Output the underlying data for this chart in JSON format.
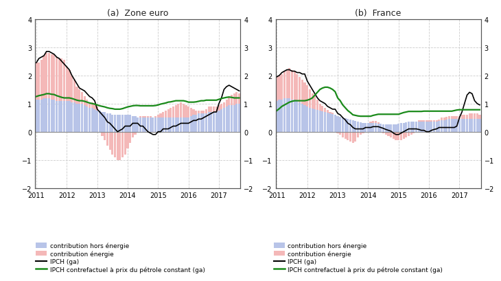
{
  "title_left": "(a)  Zone euro",
  "title_right": "(b)  France",
  "ylim": [
    -2,
    4
  ],
  "yticks": [
    -2,
    -1,
    0,
    1,
    2,
    3,
    4
  ],
  "bg_color": "#ffffff",
  "plot_bg_color": "#ffffff",
  "bar_color_energy": "#f4b8b8",
  "bar_color_non_energy": "#b8c4e8",
  "line_color_ipch": "#000000",
  "line_color_counterfactual": "#1a8a1a",
  "grid_color": "#cccccc",
  "spine_color": "#555555",
  "x_labels": [
    "2011",
    "2012",
    "2013",
    "2014",
    "2015",
    "2016",
    "2017"
  ],
  "xtick_pos": [
    0,
    12,
    24,
    36,
    48,
    60,
    72
  ],
  "zone_euro_energy": [
    1.3,
    1.3,
    1.4,
    1.5,
    1.6,
    1.6,
    1.6,
    1.6,
    1.55,
    1.5,
    1.5,
    1.45,
    1.2,
    1.1,
    0.95,
    0.8,
    0.6,
    0.5,
    0.4,
    0.3,
    0.25,
    0.2,
    0.2,
    0.2,
    0.15,
    0.0,
    -0.15,
    -0.3,
    -0.5,
    -0.65,
    -0.8,
    -0.9,
    -1.0,
    -1.0,
    -0.9,
    -0.8,
    -0.6,
    -0.4,
    -0.2,
    -0.1,
    0.0,
    0.05,
    0.05,
    0.05,
    0.05,
    0.05,
    0.0,
    0.05,
    0.1,
    0.15,
    0.2,
    0.25,
    0.3,
    0.35,
    0.4,
    0.45,
    0.5,
    0.55,
    0.5,
    0.45,
    0.4,
    0.3,
    0.2,
    0.15,
    0.1,
    0.1,
    0.1,
    0.15,
    0.2,
    0.2,
    0.2,
    0.2,
    0.2,
    0.2,
    0.2,
    0.25,
    0.3,
    0.35,
    0.4,
    0.4,
    0.35
  ],
  "zone_euro_non_energy": [
    1.15,
    1.15,
    1.15,
    1.2,
    1.2,
    1.2,
    1.15,
    1.15,
    1.1,
    1.1,
    1.1,
    1.1,
    1.1,
    1.1,
    1.05,
    1.05,
    1.0,
    1.0,
    1.0,
    0.95,
    0.9,
    0.85,
    0.85,
    0.8,
    0.75,
    0.75,
    0.7,
    0.7,
    0.65,
    0.65,
    0.6,
    0.6,
    0.6,
    0.6,
    0.6,
    0.6,
    0.6,
    0.6,
    0.55,
    0.55,
    0.5,
    0.5,
    0.5,
    0.5,
    0.5,
    0.5,
    0.5,
    0.5,
    0.5,
    0.5,
    0.5,
    0.5,
    0.5,
    0.5,
    0.5,
    0.5,
    0.5,
    0.5,
    0.5,
    0.5,
    0.5,
    0.55,
    0.6,
    0.6,
    0.65,
    0.65,
    0.65,
    0.65,
    0.7,
    0.7,
    0.7,
    0.7,
    0.75,
    0.8,
    0.85,
    0.9,
    0.95,
    0.95,
    0.95,
    1.0,
    1.0
  ],
  "zone_euro_ipch": [
    2.45,
    2.6,
    2.65,
    2.7,
    2.85,
    2.85,
    2.8,
    2.75,
    2.65,
    2.6,
    2.5,
    2.4,
    2.3,
    2.2,
    2.0,
    1.85,
    1.7,
    1.55,
    1.5,
    1.45,
    1.35,
    1.25,
    1.2,
    1.1,
    0.8,
    0.7,
    0.6,
    0.5,
    0.35,
    0.3,
    0.2,
    0.1,
    0.0,
    0.05,
    0.1,
    0.2,
    0.2,
    0.2,
    0.3,
    0.3,
    0.3,
    0.2,
    0.2,
    0.1,
    0.0,
    -0.05,
    -0.1,
    -0.1,
    0.0,
    0.0,
    0.1,
    0.1,
    0.1,
    0.15,
    0.2,
    0.2,
    0.25,
    0.3,
    0.3,
    0.3,
    0.3,
    0.35,
    0.4,
    0.4,
    0.45,
    0.45,
    0.5,
    0.55,
    0.6,
    0.65,
    0.7,
    0.7,
    1.0,
    1.2,
    1.5,
    1.6,
    1.65,
    1.6,
    1.55,
    1.5,
    1.45
  ],
  "zone_euro_counterfactual": [
    1.25,
    1.28,
    1.3,
    1.32,
    1.35,
    1.35,
    1.33,
    1.32,
    1.28,
    1.25,
    1.22,
    1.2,
    1.2,
    1.2,
    1.18,
    1.15,
    1.12,
    1.1,
    1.1,
    1.08,
    1.05,
    1.02,
    1.0,
    0.98,
    0.95,
    0.92,
    0.9,
    0.88,
    0.85,
    0.83,
    0.82,
    0.8,
    0.8,
    0.8,
    0.82,
    0.85,
    0.88,
    0.9,
    0.92,
    0.93,
    0.93,
    0.92,
    0.92,
    0.92,
    0.92,
    0.92,
    0.92,
    0.93,
    0.95,
    0.98,
    1.0,
    1.02,
    1.05,
    1.06,
    1.08,
    1.1,
    1.1,
    1.1,
    1.1,
    1.08,
    1.05,
    1.05,
    1.05,
    1.06,
    1.08,
    1.1,
    1.1,
    1.12,
    1.12,
    1.12,
    1.12,
    1.12,
    1.15,
    1.18,
    1.2,
    1.22,
    1.23,
    1.22,
    1.2,
    1.2,
    1.2
  ],
  "france_energy": [
    0.85,
    0.85,
    0.9,
    0.95,
    1.0,
    1.05,
    1.05,
    1.0,
    0.95,
    0.9,
    0.85,
    0.8,
    0.75,
    0.65,
    0.55,
    0.45,
    0.35,
    0.25,
    0.2,
    0.15,
    0.1,
    0.05,
    0.05,
    0.0,
    -0.05,
    -0.1,
    -0.2,
    -0.25,
    -0.3,
    -0.35,
    -0.4,
    -0.35,
    -0.2,
    -0.1,
    -0.05,
    0.0,
    0.0,
    0.05,
    0.08,
    0.08,
    0.05,
    0.0,
    -0.05,
    -0.1,
    -0.15,
    -0.2,
    -0.25,
    -0.3,
    -0.3,
    -0.3,
    -0.25,
    -0.2,
    -0.15,
    -0.1,
    -0.05,
    0.0,
    0.05,
    0.05,
    0.05,
    0.05,
    0.05,
    0.05,
    0.05,
    0.05,
    0.05,
    0.1,
    0.1,
    0.1,
    0.1,
    0.1,
    0.1,
    0.1,
    0.1,
    0.15,
    0.15,
    0.15,
    0.2,
    0.2,
    0.2,
    0.2,
    0.15
  ],
  "france_non_energy": [
    1.1,
    1.15,
    1.15,
    1.2,
    1.2,
    1.2,
    1.15,
    1.15,
    1.1,
    1.05,
    1.0,
    0.95,
    0.9,
    0.85,
    0.82,
    0.8,
    0.78,
    0.75,
    0.72,
    0.7,
    0.68,
    0.65,
    0.62,
    0.6,
    0.55,
    0.52,
    0.5,
    0.48,
    0.45,
    0.43,
    0.4,
    0.38,
    0.35,
    0.33,
    0.32,
    0.3,
    0.3,
    0.3,
    0.3,
    0.3,
    0.28,
    0.28,
    0.27,
    0.27,
    0.27,
    0.27,
    0.27,
    0.27,
    0.28,
    0.3,
    0.32,
    0.33,
    0.35,
    0.35,
    0.35,
    0.35,
    0.35,
    0.35,
    0.35,
    0.35,
    0.35,
    0.35,
    0.35,
    0.35,
    0.38,
    0.4,
    0.4,
    0.42,
    0.45,
    0.45,
    0.45,
    0.45,
    0.45,
    0.45,
    0.45,
    0.45,
    0.45,
    0.45,
    0.45,
    0.45,
    0.45
  ],
  "france_ipch": [
    1.95,
    2.0,
    2.1,
    2.15,
    2.2,
    2.2,
    2.15,
    2.15,
    2.1,
    2.1,
    2.05,
    2.05,
    1.8,
    1.65,
    1.5,
    1.35,
    1.2,
    1.1,
    1.05,
    1.0,
    0.9,
    0.85,
    0.8,
    0.8,
    0.65,
    0.6,
    0.5,
    0.42,
    0.3,
    0.25,
    0.15,
    0.1,
    0.1,
    0.1,
    0.1,
    0.15,
    0.15,
    0.15,
    0.18,
    0.18,
    0.18,
    0.15,
    0.12,
    0.08,
    0.05,
    0.02,
    -0.05,
    -0.1,
    -0.1,
    -0.05,
    0.0,
    0.05,
    0.1,
    0.1,
    0.1,
    0.1,
    0.08,
    0.05,
    0.05,
    0.0,
    0.0,
    0.05,
    0.08,
    0.1,
    0.15,
    0.15,
    0.15,
    0.15,
    0.15,
    0.15,
    0.15,
    0.2,
    0.5,
    0.7,
    1.0,
    1.3,
    1.4,
    1.35,
    1.1,
    1.0,
    0.95
  ],
  "france_counterfactual": [
    0.75,
    0.82,
    0.9,
    0.95,
    1.0,
    1.05,
    1.08,
    1.1,
    1.1,
    1.1,
    1.1,
    1.1,
    1.12,
    1.15,
    1.2,
    1.3,
    1.4,
    1.5,
    1.55,
    1.58,
    1.58,
    1.55,
    1.5,
    1.42,
    1.2,
    1.1,
    0.95,
    0.85,
    0.75,
    0.68,
    0.6,
    0.58,
    0.56,
    0.55,
    0.55,
    0.55,
    0.55,
    0.55,
    0.58,
    0.6,
    0.62,
    0.62,
    0.62,
    0.62,
    0.62,
    0.62,
    0.62,
    0.62,
    0.62,
    0.65,
    0.68,
    0.7,
    0.72,
    0.72,
    0.72,
    0.72,
    0.72,
    0.72,
    0.73,
    0.73,
    0.73,
    0.73,
    0.73,
    0.73,
    0.73,
    0.73,
    0.73,
    0.73,
    0.73,
    0.73,
    0.75,
    0.77,
    0.78,
    0.78,
    0.78,
    0.78,
    0.78,
    0.78,
    0.78,
    0.78,
    0.78
  ],
  "legend_labels": [
    "contribution hors énergie",
    "contribution énergie",
    "IPCH (ga)",
    "IPCH contrefactuel à prix du pétrole constant (ga)"
  ]
}
